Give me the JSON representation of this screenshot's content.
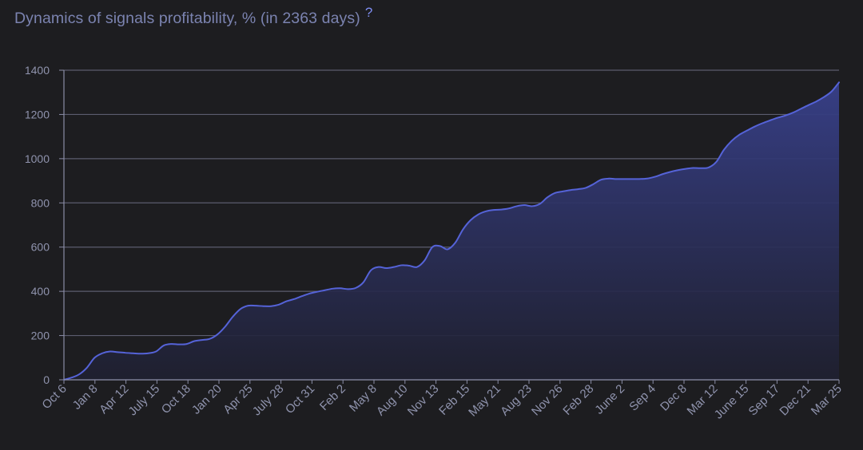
{
  "header": {
    "title": "Dynamics of signals profitability, % (in 2363 days)",
    "help_label": "?"
  },
  "chart_data": {
    "type": "area",
    "title": "Dynamics of signals profitability, % (in 2363 days)",
    "xlabel": "",
    "ylabel": "",
    "ylim": [
      0,
      1400
    ],
    "yticks": [
      0,
      200,
      400,
      600,
      800,
      1000,
      1200,
      1400
    ],
    "grid": true,
    "colors": {
      "line": "#5563d8",
      "fill_top": "#38408a",
      "fill_bottom": "#1f2030",
      "grid": "#5b5d6e",
      "axis": "#8a8da6",
      "background": "#1d1d20"
    },
    "xtick_labels": [
      "Oct 6",
      "Jan 8",
      "Apr 12",
      "July 15",
      "Oct 18",
      "Jan 20",
      "Apr 25",
      "July 28",
      "Oct 31",
      "Feb 2",
      "May 8",
      "Aug 10",
      "Nov 13",
      "Feb 15",
      "May 21",
      "Aug 23",
      "Nov 26",
      "Feb 28",
      "June 2",
      "Sep 4",
      "Dec 8",
      "Mar 12",
      "June 15",
      "Sep 17",
      "Dec 21",
      "Mar 25"
    ],
    "series": [
      {
        "values": [
          0,
          10,
          25,
          55,
          100,
          120,
          128,
          125,
          122,
          120,
          118,
          120,
          128,
          155,
          162,
          160,
          162,
          175,
          180,
          185,
          205,
          240,
          285,
          320,
          335,
          335,
          333,
          333,
          340,
          355,
          365,
          378,
          390,
          398,
          405,
          412,
          414,
          410,
          415,
          440,
          495,
          510,
          505,
          510,
          518,
          516,
          510,
          540,
          600,
          605,
          590,
          620,
          680,
          722,
          748,
          762,
          768,
          770,
          775,
          785,
          790,
          785,
          795,
          825,
          845,
          852,
          858,
          862,
          868,
          885,
          905,
          910,
          908,
          908,
          908,
          908,
          910,
          918,
          930,
          940,
          948,
          954,
          958,
          957,
          960,
          985,
          1040,
          1080,
          1108,
          1127,
          1145,
          1160,
          1173,
          1185,
          1195,
          1208,
          1225,
          1242,
          1258,
          1278,
          1303,
          1345
        ]
      }
    ]
  }
}
